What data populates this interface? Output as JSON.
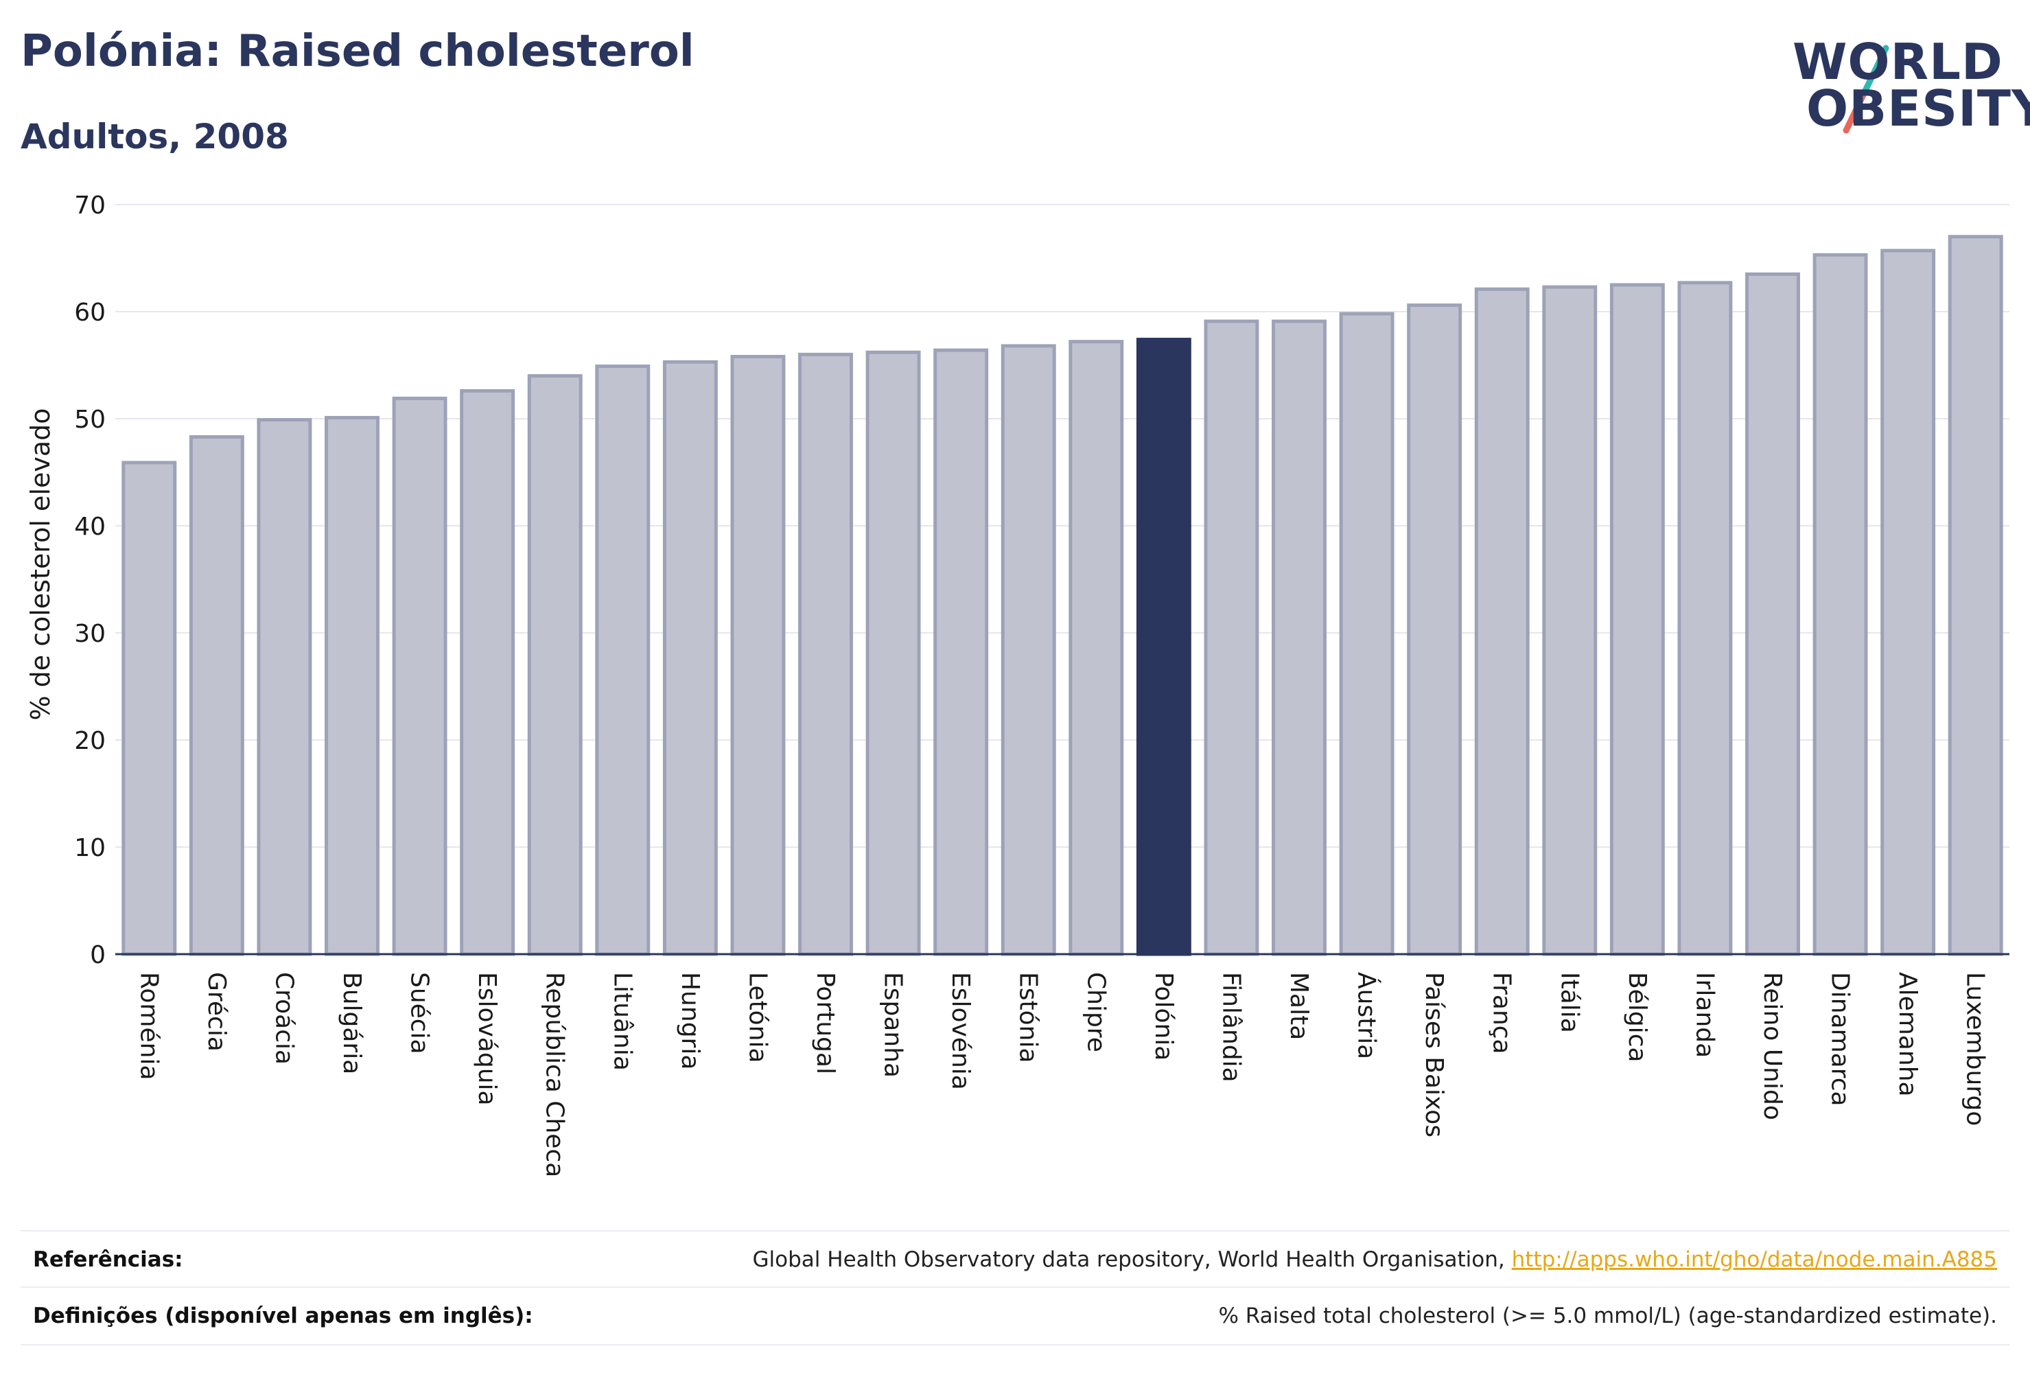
{
  "header": {
    "title": "Polónia: Raised cholesterol",
    "subtitle": "Adultos, 2008"
  },
  "logo": {
    "line1": "WORLD",
    "line2": "OBESITY",
    "accent_colors": [
      "#2fb9b0",
      "#e8665a"
    ]
  },
  "colors": {
    "bar": "#c0c3cf",
    "bar_border": "#9da2b8",
    "highlight": "#2b365e",
    "grid": "#e6e6ee",
    "axis": "#2b365e"
  },
  "chart_data": {
    "type": "bar",
    "ylabel": "% de colesterol elevado",
    "ylim": [
      0,
      70
    ],
    "yticks": [
      0,
      10,
      20,
      30,
      40,
      50,
      60,
      70
    ],
    "grid": true,
    "highlight": "Polónia",
    "categories": [
      "Roménia",
      "Grécia",
      "Croácia",
      "Bulgária",
      "Suécia",
      "Eslováquia",
      "República Checa",
      "Lituânia",
      "Hungria",
      "Letónia",
      "Portugal",
      "Espanha",
      "Eslovénia",
      "Estónia",
      "Chipre",
      "Polónia",
      "Finlândia",
      "Malta",
      "Áustria",
      "Países Baixos",
      "França",
      "Itália",
      "Bélgica",
      "Irlanda",
      "Reino Unido",
      "Dinamarca",
      "Alemanha",
      "Luxemburgo"
    ],
    "values": [
      45.9,
      48.3,
      49.9,
      50.1,
      51.9,
      52.6,
      54.0,
      54.9,
      55.3,
      55.8,
      56.0,
      56.2,
      56.4,
      56.8,
      57.2,
      57.4,
      59.1,
      59.1,
      59.8,
      60.6,
      62.1,
      62.3,
      62.5,
      62.7,
      63.5,
      65.3,
      65.7,
      67.0
    ]
  },
  "footer": {
    "references_label": "Referências:",
    "references_text": "Global Health Observatory data repository, World Health Organisation, ",
    "references_link": "http://apps.who.int/gho/data/node.main.A885",
    "definitions_label": "Definições (disponível apenas em inglês):",
    "definitions_text": "% Raised total cholesterol (>= 5.0 mmol/L) (age-standardized estimate)."
  }
}
